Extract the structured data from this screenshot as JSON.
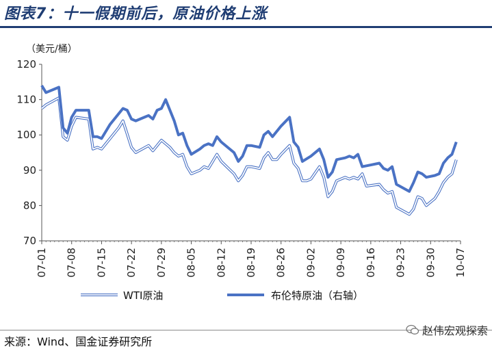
{
  "title": "图表7：十一假期前后，原油价格上涨",
  "unit_label": "（美元/桶）",
  "source": "来源：Wind、国金证券研究所",
  "watermark": "赵伟宏观探索",
  "colors": {
    "title": "#1f3d73",
    "wti_outline": "#4a72c4",
    "brent": "#4a72c4"
  },
  "chart_data": {
    "type": "line",
    "title": "",
    "xlabel": "",
    "ylabel": "（美元/桶）",
    "ylim": [
      70,
      120
    ],
    "yticks": [
      70,
      80,
      90,
      100,
      110,
      120
    ],
    "xlim": [
      0,
      98
    ],
    "xticks": [
      {
        "label": "07-01",
        "x": 0
      },
      {
        "label": "07-08",
        "x": 7
      },
      {
        "label": "07-15",
        "x": 14
      },
      {
        "label": "07-22",
        "x": 21
      },
      {
        "label": "07-29",
        "x": 28
      },
      {
        "label": "08-05",
        "x": 35
      },
      {
        "label": "08-12",
        "x": 42
      },
      {
        "label": "08-19",
        "x": 49
      },
      {
        "label": "08-26",
        "x": 56
      },
      {
        "label": "09-02",
        "x": 63
      },
      {
        "label": "09-09",
        "x": 70
      },
      {
        "label": "09-16",
        "x": 77
      },
      {
        "label": "09-23",
        "x": 84
      },
      {
        "label": "09-30",
        "x": 91
      },
      {
        "label": "10-07",
        "x": 98
      }
    ],
    "legend_position": "bottom",
    "grid": false,
    "series": [
      {
        "name": "WTI原油",
        "style": "outlined",
        "points": [
          [
            0,
            107.5
          ],
          [
            1,
            108.5
          ],
          [
            4,
            110.5
          ],
          [
            5,
            99.5
          ],
          [
            6,
            98.5
          ],
          [
            7,
            102.5
          ],
          [
            8,
            105
          ],
          [
            11,
            104.5
          ],
          [
            12,
            96
          ],
          [
            13,
            96.5
          ],
          [
            14,
            96
          ],
          [
            16,
            99
          ],
          [
            18,
            102
          ],
          [
            19,
            104
          ],
          [
            21,
            96.5
          ],
          [
            22,
            95
          ],
          [
            25,
            97
          ],
          [
            26,
            95.5
          ],
          [
            27,
            97
          ],
          [
            28,
            98.5
          ],
          [
            30,
            96.5
          ],
          [
            31,
            95
          ],
          [
            32,
            94
          ],
          [
            33,
            94.5
          ],
          [
            34,
            91
          ],
          [
            35,
            89
          ],
          [
            37,
            90
          ],
          [
            38,
            91
          ],
          [
            39,
            90.5
          ],
          [
            41,
            94.5
          ],
          [
            42,
            92.5
          ],
          [
            45,
            89
          ],
          [
            46,
            87
          ],
          [
            47,
            88.5
          ],
          [
            48,
            91
          ],
          [
            49,
            91
          ],
          [
            51,
            90.5
          ],
          [
            52,
            93.5
          ],
          [
            53,
            95
          ],
          [
            54,
            93
          ],
          [
            55,
            93
          ],
          [
            56,
            94.5
          ],
          [
            58,
            97
          ],
          [
            59,
            92
          ],
          [
            60,
            90.5
          ],
          [
            61,
            87
          ],
          [
            62,
            87
          ],
          [
            63,
            87.5
          ],
          [
            65,
            91
          ],
          [
            66,
            88
          ],
          [
            67,
            82.5
          ],
          [
            68,
            84
          ],
          [
            69,
            87
          ],
          [
            71,
            88
          ],
          [
            72,
            87.5
          ],
          [
            73,
            88
          ],
          [
            74,
            87.5
          ],
          [
            75,
            89
          ],
          [
            76,
            85.5
          ],
          [
            79,
            86
          ],
          [
            80,
            84.5
          ],
          [
            81,
            83.5
          ],
          [
            82,
            84
          ],
          [
            83,
            79.5
          ],
          [
            86,
            77.5
          ],
          [
            87,
            79
          ],
          [
            88,
            82.5
          ],
          [
            89,
            82
          ],
          [
            90,
            80
          ],
          [
            92,
            82
          ],
          [
            93,
            84
          ],
          [
            94,
            86.5
          ],
          [
            95,
            88
          ],
          [
            96,
            89
          ],
          [
            97,
            93
          ]
        ]
      },
      {
        "name": "布伦特原油（右轴）",
        "style": "thick",
        "points": [
          [
            0,
            114
          ],
          [
            1,
            112
          ],
          [
            3,
            113
          ],
          [
            4,
            113.5
          ],
          [
            5,
            102
          ],
          [
            6,
            100.5
          ],
          [
            7,
            105
          ],
          [
            8,
            107
          ],
          [
            11,
            107
          ],
          [
            12,
            99.5
          ],
          [
            13,
            99.5
          ],
          [
            14,
            99
          ],
          [
            16,
            103
          ],
          [
            18,
            106
          ],
          [
            19,
            107.5
          ],
          [
            20,
            107
          ],
          [
            21,
            104.5
          ],
          [
            22,
            104
          ],
          [
            24,
            105
          ],
          [
            25,
            105.5
          ],
          [
            26,
            104.5
          ],
          [
            27,
            107
          ],
          [
            28,
            107.5
          ],
          [
            29,
            110
          ],
          [
            31,
            104
          ],
          [
            32,
            100
          ],
          [
            33,
            100.5
          ],
          [
            34,
            97
          ],
          [
            35,
            94.5
          ],
          [
            37,
            96
          ],
          [
            38,
            97
          ],
          [
            39,
            97.5
          ],
          [
            40,
            97
          ],
          [
            41,
            99.5
          ],
          [
            42,
            98
          ],
          [
            45,
            95
          ],
          [
            46,
            92.5
          ],
          [
            47,
            94
          ],
          [
            48,
            97
          ],
          [
            49,
            97
          ],
          [
            51,
            96.5
          ],
          [
            52,
            100
          ],
          [
            53,
            101
          ],
          [
            54,
            99.5
          ],
          [
            56,
            102.5
          ],
          [
            58,
            105
          ],
          [
            59,
            98
          ],
          [
            60,
            96.5
          ],
          [
            61,
            92.5
          ],
          [
            63,
            94
          ],
          [
            65,
            96
          ],
          [
            66,
            93
          ],
          [
            67,
            88
          ],
          [
            68,
            89.5
          ],
          [
            69,
            93
          ],
          [
            71,
            93.5
          ],
          [
            72,
            94
          ],
          [
            73,
            93.5
          ],
          [
            74,
            94.5
          ],
          [
            75,
            91
          ],
          [
            77,
            91.5
          ],
          [
            79,
            92
          ],
          [
            80,
            90.5
          ],
          [
            81,
            90
          ],
          [
            82,
            91
          ],
          [
            83,
            86
          ],
          [
            86,
            84
          ],
          [
            87,
            86.5
          ],
          [
            88,
            89.5
          ],
          [
            89,
            89
          ],
          [
            90,
            88
          ],
          [
            92,
            88.5
          ],
          [
            93,
            89
          ],
          [
            94,
            92
          ],
          [
            95,
            93.5
          ],
          [
            96,
            94.5
          ],
          [
            97,
            98
          ]
        ]
      }
    ]
  }
}
